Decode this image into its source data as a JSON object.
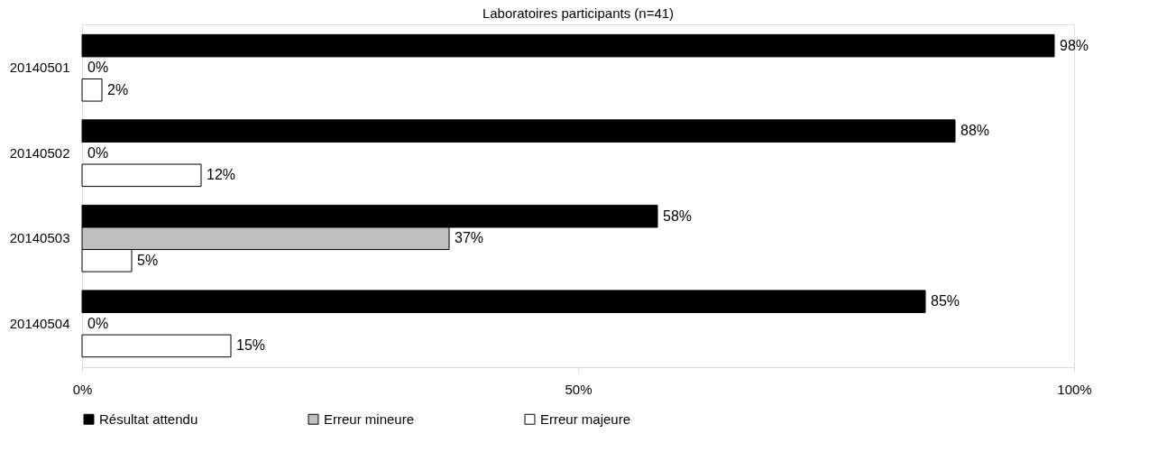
{
  "chart_data": {
    "type": "bar",
    "orientation": "horizontal",
    "title": "Laboratoires participants (n=41)",
    "categories": [
      "20140501",
      "20140502",
      "20140503",
      "20140504"
    ],
    "series": [
      {
        "name": "Résultat attendu",
        "color": "#000000",
        "values": [
          98,
          88,
          58,
          85
        ],
        "value_labels": [
          "98%",
          "88%",
          "58%",
          "85%"
        ]
      },
      {
        "name": "Erreur mineure",
        "color": "#bfbfbf",
        "values": [
          0,
          0,
          37,
          0
        ],
        "value_labels": [
          "0%",
          "0%",
          "37%",
          "0%"
        ]
      },
      {
        "name": "Erreur majeure",
        "color": "#ffffff",
        "values": [
          2,
          12,
          5,
          15
        ],
        "value_labels": [
          "2%",
          "12%",
          "5%",
          "15%"
        ]
      }
    ],
    "xlim": [
      0,
      100
    ],
    "xticks": [
      {
        "value": 0,
        "label": "0%"
      },
      {
        "value": 50,
        "label": "50%"
      },
      {
        "value": 100,
        "label": "100%"
      }
    ],
    "grid": false,
    "legend": "bottom"
  }
}
